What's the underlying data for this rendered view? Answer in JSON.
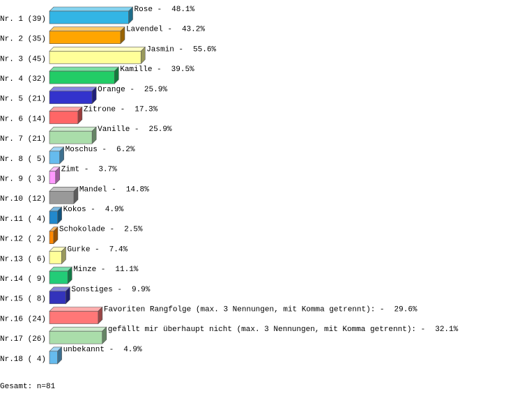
{
  "chart_data": {
    "type": "bar3d",
    "categories": [
      "Nr. 1 (39)",
      "Nr. 2 (35)",
      "Nr. 3 (45)",
      "Nr. 4 (32)",
      "Nr. 5 (21)",
      "Nr. 6 (14)",
      "Nr. 7 (21)",
      "Nr. 8 ( 5)",
      "Nr. 9 ( 3)",
      "Nr.10 (12)",
      "Nr.11 ( 4)",
      "Nr.12 ( 2)",
      "Nr.13 ( 6)",
      "Nr.14 ( 9)",
      "Nr.15 ( 8)",
      "Nr.16 (24)",
      "Nr.17 (26)",
      "Nr.18 ( 4)"
    ],
    "labels": [
      "Rose -",
      "Lavendel -",
      "Jasmin -",
      "Kamille -",
      "Orange -",
      "Zitrone -",
      "Vanille -",
      "Moschus -",
      "Zimt -",
      "Mandel -",
      "Kokos -",
      "Schokolade -",
      "Gurke -",
      "Minze -",
      "Sonstiges -",
      "Favoriten Rangfolge (max. 3 Nennungen, mit Komma getrennt): -",
      "gefällt mir überhaupt nicht (max. 3 Nennungen, mit Komma getrennt): -",
      "unbekannt -"
    ],
    "values": [
      48.1,
      43.2,
      55.6,
      39.5,
      25.9,
      17.3,
      25.9,
      6.2,
      3.7,
      14.8,
      4.9,
      2.5,
      7.4,
      11.1,
      9.9,
      29.6,
      32.1,
      4.9
    ],
    "value_labels": [
      "48.1%",
      "43.2%",
      "55.6%",
      "39.5%",
      "25.9%",
      "17.3%",
      "25.9%",
      "6.2%",
      "3.7%",
      "14.8%",
      "4.9%",
      "2.5%",
      "7.4%",
      "11.1%",
      "9.9%",
      "29.6%",
      "32.1%",
      "4.9%"
    ],
    "colors": [
      "#33b5e5",
      "#ffa500",
      "#ffff99",
      "#22cc66",
      "#3333cc",
      "#ff6666",
      "#aaddaa",
      "#66bbee",
      "#ff99ff",
      "#999999",
      "#2288cc",
      "#ff8800",
      "#ffff99",
      "#22cc77",
      "#3333bb",
      "#ff7777",
      "#aaddaa",
      "#66bbee"
    ],
    "footer": "Gesamt: n=81"
  }
}
